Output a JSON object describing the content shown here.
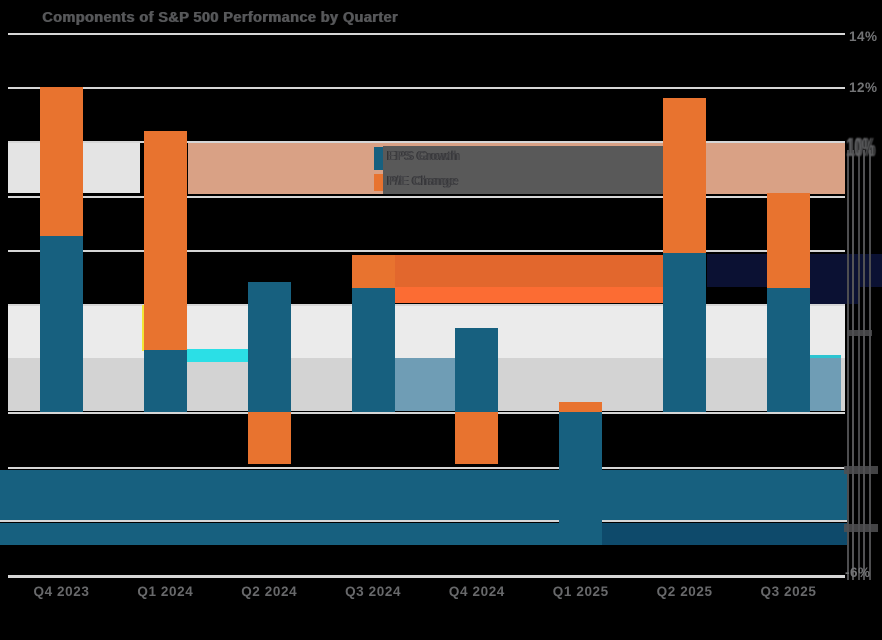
{
  "title": "Components of S&P 500 Performance by Quarter",
  "legend": {
    "items": [
      {
        "label": "EPS Growth",
        "color": "#17607f"
      },
      {
        "label": "P/E Change",
        "color": "#e8732f"
      }
    ]
  },
  "y_axis": {
    "side": "right",
    "labels": {
      "top": "14%",
      "second": "12%",
      "garbled": "10%",
      "bottom": "-6%"
    }
  },
  "x_axis": {
    "labels": [
      "Q4 2023",
      "Q1 2024",
      "Q2 2024",
      "Q3 2024",
      "Q4 2024",
      "Q1 2025",
      "Q2 2025",
      "Q3 2025"
    ]
  },
  "chart_data": {
    "type": "bar",
    "stacked": true,
    "title": "Components of S&P 500 Performance by Quarter",
    "categories": [
      "Q4 2023",
      "Q1 2024",
      "Q2 2024",
      "Q3 2024",
      "Q4 2024",
      "Q1 2025",
      "Q2 2025",
      "Q3 2025"
    ],
    "series": [
      {
        "name": "EPS Growth",
        "color": "#17607f",
        "values": [
          6.5,
          2.3,
          4.8,
          4.6,
          3.1,
          -4.9,
          5.9,
          4.6
        ]
      },
      {
        "name": "P/E Change",
        "color": "#e8732f",
        "values": [
          5.5,
          8.1,
          -1.9,
          1.2,
          -1.9,
          0.4,
          5.7,
          3.5
        ]
      }
    ],
    "totals": [
      12.0,
      10.4,
      2.9,
      5.8,
      1.2,
      -4.5,
      11.6,
      8.1
    ],
    "ylim": [
      -6,
      14
    ],
    "ytick_step": 2,
    "ytick_format": "percent",
    "grid": "horizontal",
    "legend_position": "inside-top-center"
  },
  "colors": {
    "bar_blue": "#17607f",
    "bar_orange": "#e8732f",
    "glitch_tan": "#d9a185",
    "glitch_dark_gray": "#595959",
    "glitch_left_gray": "#e4e4e4",
    "glitch_light_gray": "#ebebeb",
    "glitch_mid_gray": "#d3d3d3",
    "glitch_orange_dark": "#e2672d",
    "glitch_orange_bright": "#fc6c33",
    "glitch_navy": "#0b1133",
    "glitch_steel_blue": "#6f9db5",
    "glitch_cyan": "#2bdfe6",
    "glitch_teal_edge": "#2cc4d1",
    "glitch_yellow": "#f2e636",
    "glitch_deep_blue": "#0e4a6b",
    "gridline": "#d6d6d6",
    "background": "#000000"
  }
}
